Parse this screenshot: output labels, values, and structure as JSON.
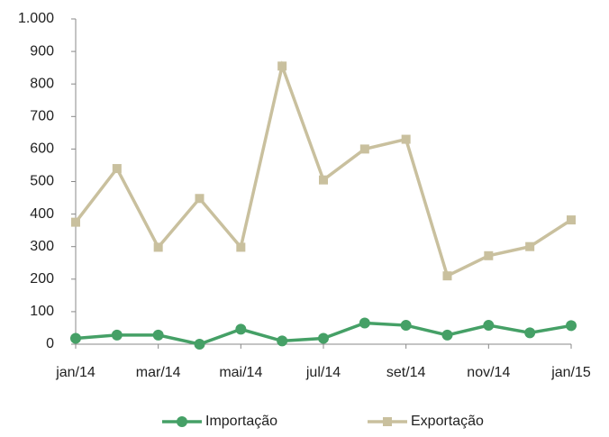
{
  "chart_data": {
    "type": "line",
    "categories": [
      "jan/14",
      null,
      "mar/14",
      null,
      "mai/14",
      null,
      "jul/14",
      null,
      "set/14",
      null,
      "nov/14",
      null,
      "jan/15"
    ],
    "series": [
      {
        "name": "Importação",
        "color": "#45a066",
        "marker": "circle",
        "values": [
          18,
          28,
          28,
          0,
          46,
          10,
          18,
          65,
          58,
          28,
          58,
          35,
          57
        ]
      },
      {
        "name": "Exportação",
        "color": "#c9c09e",
        "marker": "square",
        "values": [
          375,
          540,
          298,
          448,
          298,
          855,
          505,
          600,
          630,
          210,
          272,
          300,
          382
        ]
      }
    ],
    "ylim": [
      0,
      1000
    ],
    "yticks": [
      0,
      100,
      200,
      300,
      400,
      500,
      600,
      700,
      800,
      900,
      {
        "value": 1000,
        "label": "1.000"
      }
    ],
    "grid": false,
    "legend": "bottom"
  }
}
